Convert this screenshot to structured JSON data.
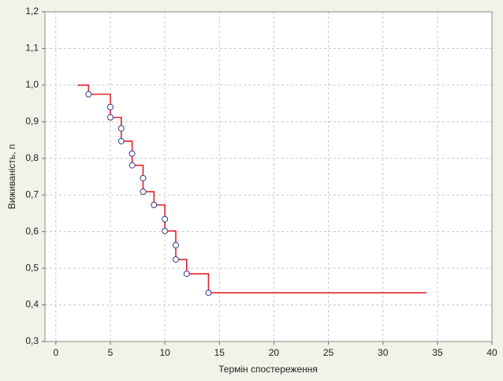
{
  "chart_data": {
    "type": "step",
    "ylabel": "Виживаність, п",
    "xlabel": "Термін спостереження",
    "xlim": [
      -1,
      40
    ],
    "xticks": [
      0,
      5,
      10,
      15,
      20,
      25,
      30,
      35,
      40
    ],
    "ylim": [
      0.3,
      1.2
    ],
    "yticks": [
      {
        "value": 0.3,
        "label": "0,3"
      },
      {
        "value": 0.4,
        "label": "0,4"
      },
      {
        "value": 0.5,
        "label": "0,5"
      },
      {
        "value": 0.6,
        "label": "0,6"
      },
      {
        "value": 0.7,
        "label": "0,7"
      },
      {
        "value": 0.8,
        "label": "0,8"
      },
      {
        "value": 0.9,
        "label": "0,9"
      },
      {
        "value": 1.0,
        "label": "1,0"
      },
      {
        "value": 1.1,
        "label": "1,1"
      },
      {
        "value": 1.2,
        "label": "1,2"
      }
    ],
    "grid": true,
    "line": {
      "color": "#e0232e",
      "x": [
        2,
        3,
        5,
        6,
        7,
        8,
        9,
        10,
        11,
        12,
        14,
        34
      ],
      "values": [
        1.0,
        0.975,
        0.912,
        0.847,
        0.781,
        0.709,
        0.673,
        0.602,
        0.524,
        0.485,
        0.433,
        0.433
      ]
    },
    "markers": {
      "color": "#3a3a8c",
      "x": [
        3,
        5,
        5,
        6,
        6,
        7,
        7,
        8,
        8,
        9,
        10,
        10,
        11,
        11,
        12,
        14
      ],
      "values": [
        0.975,
        0.94,
        0.912,
        0.882,
        0.847,
        0.813,
        0.781,
        0.746,
        0.709,
        0.673,
        0.634,
        0.602,
        0.563,
        0.524,
        0.485,
        0.433
      ]
    }
  }
}
